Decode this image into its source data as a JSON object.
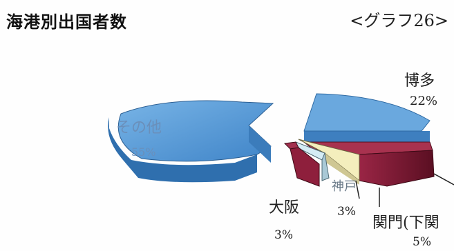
{
  "page": {
    "title": "海港別出国者数",
    "graph_number": "<グラフ26>"
  },
  "chart_data": {
    "type": "pie",
    "title": "海港別出国者数",
    "slices": [
      {
        "label": "博多",
        "value": 22,
        "value_label": "22%",
        "color": "#5a9bd5",
        "exploded": false
      },
      {
        "label": "",
        "value": 12,
        "value_label": "",
        "color": "#8c1c3a",
        "exploded": false
      },
      {
        "label": "関門(下関",
        "value": 5,
        "value_label": "5%",
        "color": "#f6f1c2",
        "exploded": false
      },
      {
        "label": "神戸",
        "value": 3,
        "value_label": "3%",
        "color": "#cfe9f2",
        "exploded": false
      },
      {
        "label": "大阪",
        "value": 3,
        "value_label": "3%",
        "color": "#8c1c3a",
        "exploded": false
      },
      {
        "label": "その他",
        "value": 55,
        "value_label": "55%",
        "color": "#4a8fcf",
        "exploded": true
      }
    ]
  }
}
